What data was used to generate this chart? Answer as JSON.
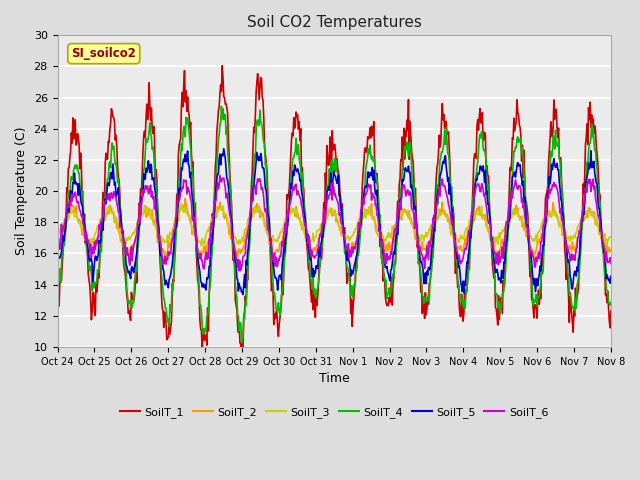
{
  "title": "Soil CO2 Temperatures",
  "xlabel": "Time",
  "ylabel": "Soil Temperature (C)",
  "ylim": [
    10,
    30
  ],
  "yticks": [
    10,
    12,
    14,
    16,
    18,
    20,
    22,
    24,
    26,
    28,
    30
  ],
  "x_labels": [
    "Oct 24",
    "Oct 25",
    "Oct 26",
    "Oct 27",
    "Oct 28",
    "Oct 29",
    "Oct 30",
    "Oct 31",
    "Nov 1",
    "Nov 2",
    "Nov 3",
    "Nov 4",
    "Nov 5",
    "Nov 6",
    "Nov 7",
    "Nov 8"
  ],
  "label_box_text": "SI_soilco2",
  "label_box_color": "#ffff99",
  "label_box_edgecolor": "#aaaa00",
  "label_box_textcolor": "#990000",
  "series_colors": [
    "#cc0000",
    "#ff9900",
    "#cccc00",
    "#00bb00",
    "#0000cc",
    "#cc00cc"
  ],
  "series_labels": [
    "SoilT_1",
    "SoilT_2",
    "SoilT_3",
    "SoilT_4",
    "SoilT_5",
    "SoilT_6"
  ],
  "bg_color": "#dddddd",
  "plot_bg_color": "#ebebeb",
  "grid_color": "#ffffff",
  "linewidth": 1.2
}
